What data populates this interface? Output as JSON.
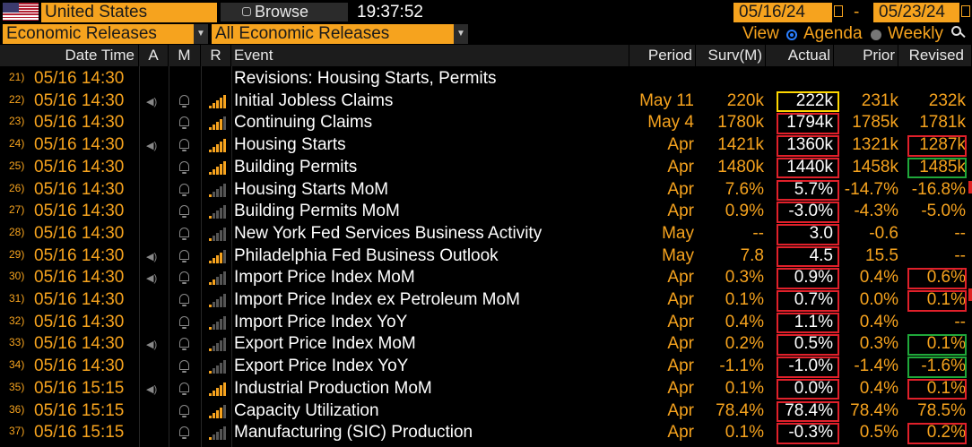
{
  "toolbar": {
    "country": "United States",
    "browse_label": "Browse",
    "time": "19:37:52",
    "start_date": "05/16/24",
    "date_sep": "-",
    "end_date": "05/23/24",
    "category": "Economic Releases",
    "filter": "All Economic Releases",
    "view_label": "View",
    "agenda_label": "Agenda",
    "weekly_label": "Weekly",
    "view_selected": "Agenda"
  },
  "columns": {
    "datetime": "Date Time",
    "a": "A",
    "m": "M",
    "r": "R",
    "event": "Event",
    "period": "Period",
    "surv": "Surv(M)",
    "actual": "Actual",
    "prior": "Prior",
    "revised": "Revised"
  },
  "colors": {
    "accent": "#f6a31e",
    "highlight_yellow": "#ffd700",
    "highlight_red": "#e0202a",
    "highlight_green": "#1fa83a"
  },
  "rows": [
    {
      "num": "21)",
      "dt": "05/16 14:30",
      "event": "Revisions: Housing Starts, Permits",
      "period": "",
      "surv": "",
      "actual": "",
      "prior": "",
      "revised": "",
      "speaker": false,
      "relevance": 0
    },
    {
      "num": "22)",
      "dt": "05/16 14:30",
      "event": "Initial Jobless Claims",
      "period": "May 11",
      "surv": "220k",
      "actual": "222k",
      "prior": "231k",
      "revised": "232k",
      "speaker": true,
      "relevance": 5
    },
    {
      "num": "23)",
      "dt": "05/16 14:30",
      "event": "Continuing Claims",
      "period": "May 4",
      "surv": "1780k",
      "actual": "1794k",
      "prior": "1785k",
      "revised": "1781k",
      "speaker": false,
      "relevance": 4
    },
    {
      "num": "24)",
      "dt": "05/16 14:30",
      "event": "Housing Starts",
      "period": "Apr",
      "surv": "1421k",
      "actual": "1360k",
      "prior": "1321k",
      "revised": "1287k",
      "speaker": true,
      "relevance": 5
    },
    {
      "num": "25)",
      "dt": "05/16 14:30",
      "event": "Building Permits",
      "period": "Apr",
      "surv": "1480k",
      "actual": "1440k",
      "prior": "1458k",
      "revised": "1485k",
      "speaker": false,
      "relevance": 5
    },
    {
      "num": "26)",
      "dt": "05/16 14:30",
      "event": "Housing Starts MoM",
      "period": "Apr",
      "surv": "7.6%",
      "actual": "5.7%",
      "prior": "-14.7%",
      "revised": "-16.8%",
      "speaker": false,
      "relevance": 1
    },
    {
      "num": "27)",
      "dt": "05/16 14:30",
      "event": "Building Permits MoM",
      "period": "Apr",
      "surv": "0.9%",
      "actual": "-3.0%",
      "prior": "-4.3%",
      "revised": "-5.0%",
      "speaker": false,
      "relevance": 1
    },
    {
      "num": "28)",
      "dt": "05/16 14:30",
      "event": "New York Fed Services Business Activity",
      "period": "May",
      "surv": "--",
      "actual": "3.0",
      "prior": "-0.6",
      "revised": "--",
      "speaker": false,
      "relevance": 1
    },
    {
      "num": "29)",
      "dt": "05/16 14:30",
      "event": "Philadelphia Fed Business Outlook",
      "period": "May",
      "surv": "7.8",
      "actual": "4.5",
      "prior": "15.5",
      "revised": "--",
      "speaker": true,
      "relevance": 4
    },
    {
      "num": "30)",
      "dt": "05/16 14:30",
      "event": "Import Price Index MoM",
      "period": "Apr",
      "surv": "0.3%",
      "actual": "0.9%",
      "prior": "0.4%",
      "revised": "0.6%",
      "speaker": true,
      "relevance": 2
    },
    {
      "num": "31)",
      "dt": "05/16 14:30",
      "event": "Import Price Index ex Petroleum MoM",
      "period": "Apr",
      "surv": "0.1%",
      "actual": "0.7%",
      "prior": "0.0%",
      "revised": "0.1%",
      "speaker": false,
      "relevance": 1
    },
    {
      "num": "32)",
      "dt": "05/16 14:30",
      "event": "Import Price Index YoY",
      "period": "Apr",
      "surv": "0.4%",
      "actual": "1.1%",
      "prior": "0.4%",
      "revised": "--",
      "speaker": false,
      "relevance": 1
    },
    {
      "num": "33)",
      "dt": "05/16 14:30",
      "event": "Export Price Index MoM",
      "period": "Apr",
      "surv": "0.2%",
      "actual": "0.5%",
      "prior": "0.3%",
      "revised": "0.1%",
      "speaker": true,
      "relevance": 1
    },
    {
      "num": "34)",
      "dt": "05/16 14:30",
      "event": "Export Price Index YoY",
      "period": "Apr",
      "surv": "-1.1%",
      "actual": "-1.0%",
      "prior": "-1.4%",
      "revised": "-1.6%",
      "speaker": false,
      "relevance": 1
    },
    {
      "num": "35)",
      "dt": "05/16 15:15",
      "event": "Industrial Production MoM",
      "period": "Apr",
      "surv": "0.1%",
      "actual": "0.0%",
      "prior": "0.4%",
      "revised": "0.1%",
      "speaker": true,
      "relevance": 5
    },
    {
      "num": "36)",
      "dt": "05/16 15:15",
      "event": "Capacity Utilization",
      "period": "Apr",
      "surv": "78.4%",
      "actual": "78.4%",
      "prior": "78.4%",
      "revised": "78.5%",
      "speaker": false,
      "relevance": 4
    },
    {
      "num": "37)",
      "dt": "05/16 15:15",
      "event": "Manufacturing (SIC) Production",
      "period": "Apr",
      "surv": "0.1%",
      "actual": "-0.3%",
      "prior": "0.5%",
      "revised": "0.2%",
      "speaker": false,
      "relevance": 1
    }
  ],
  "highlights": [
    {
      "row": 1,
      "col": "actual",
      "color": "yellow"
    },
    {
      "row": 2,
      "col": "actual",
      "color": "red"
    },
    {
      "row": 3,
      "col": "actual",
      "color": "red"
    },
    {
      "row": 3,
      "col": "revised",
      "color": "red"
    },
    {
      "row": 4,
      "col": "actual",
      "color": "red"
    },
    {
      "row": 4,
      "col": "revised",
      "color": "green"
    },
    {
      "row": 5,
      "col": "actual",
      "color": "red"
    },
    {
      "row": 6,
      "col": "actual",
      "color": "red"
    },
    {
      "row": 7,
      "col": "actual",
      "color": "red"
    },
    {
      "row": 8,
      "col": "actual",
      "color": "red"
    },
    {
      "row": 9,
      "col": "actual",
      "color": "red"
    },
    {
      "row": 9,
      "col": "revised",
      "color": "red"
    },
    {
      "row": 10,
      "col": "actual",
      "color": "red"
    },
    {
      "row": 10,
      "col": "revised",
      "color": "red"
    },
    {
      "row": 11,
      "col": "actual",
      "color": "red"
    },
    {
      "row": 12,
      "col": "actual",
      "color": "red"
    },
    {
      "row": 12,
      "col": "revised",
      "color": "green"
    },
    {
      "row": 13,
      "col": "actual",
      "color": "red"
    },
    {
      "row": 13,
      "col": "revised",
      "color": "green"
    },
    {
      "row": 14,
      "col": "actual",
      "color": "red"
    },
    {
      "row": 14,
      "col": "revised",
      "color": "red"
    },
    {
      "row": 15,
      "col": "actual",
      "color": "red"
    },
    {
      "row": 16,
      "col": "actual",
      "color": "red"
    },
    {
      "row": 16,
      "col": "revised",
      "color": "red"
    }
  ]
}
